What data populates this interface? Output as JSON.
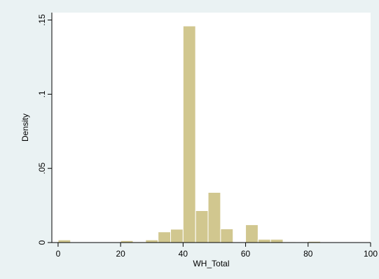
{
  "colors": {
    "outer_background": "#eaf2f3",
    "plot_background": "#ffffff",
    "bar_fill": "#d1c78f",
    "bar_stroke": "#ffffff",
    "axis": "#000000"
  },
  "chart_data": {
    "type": "bar",
    "subtype": "histogram",
    "xlabel": "WH_Total",
    "ylabel": "Density",
    "xlim": [
      -2,
      100
    ],
    "ylim": [
      0,
      0.155
    ],
    "grid": false,
    "legend": "none",
    "x_ticks": [
      {
        "value": 0,
        "label": "0"
      },
      {
        "value": 20,
        "label": "20"
      },
      {
        "value": 40,
        "label": "40"
      },
      {
        "value": 60,
        "label": "60"
      },
      {
        "value": 80,
        "label": "80"
      },
      {
        "value": 100,
        "label": "100"
      }
    ],
    "y_ticks": [
      {
        "value": 0,
        "label": "0"
      },
      {
        "value": 0.05,
        "label": ".05"
      },
      {
        "value": 0.1,
        "label": ".1"
      },
      {
        "value": 0.15,
        "label": ".15"
      }
    ],
    "bins": [
      {
        "start": 0,
        "end": 4,
        "value": 0.0018
      },
      {
        "start": 8,
        "end": 12,
        "value": 0.0003
      },
      {
        "start": 12,
        "end": 16,
        "value": 0.0002
      },
      {
        "start": 20,
        "end": 24,
        "value": 0.0013
      },
      {
        "start": 24,
        "end": 28,
        "value": 0.0005
      },
      {
        "start": 28,
        "end": 32,
        "value": 0.0018
      },
      {
        "start": 32,
        "end": 36,
        "value": 0.0072
      },
      {
        "start": 36,
        "end": 40,
        "value": 0.009
      },
      {
        "start": 40,
        "end": 44,
        "value": 0.146
      },
      {
        "start": 44,
        "end": 48,
        "value": 0.0215
      },
      {
        "start": 48,
        "end": 52,
        "value": 0.0338
      },
      {
        "start": 52,
        "end": 56,
        "value": 0.0092
      },
      {
        "start": 60,
        "end": 64,
        "value": 0.012
      },
      {
        "start": 64,
        "end": 68,
        "value": 0.0022
      },
      {
        "start": 68,
        "end": 72,
        "value": 0.0022
      },
      {
        "start": 72,
        "end": 76,
        "value": 0.0005
      },
      {
        "start": 80,
        "end": 84,
        "value": 0.0008
      },
      {
        "start": 84,
        "end": 88,
        "value": 0.0003
      },
      {
        "start": 88,
        "end": 92,
        "value": 0.0002
      },
      {
        "start": 96,
        "end": 100,
        "value": 0.0003
      }
    ]
  }
}
